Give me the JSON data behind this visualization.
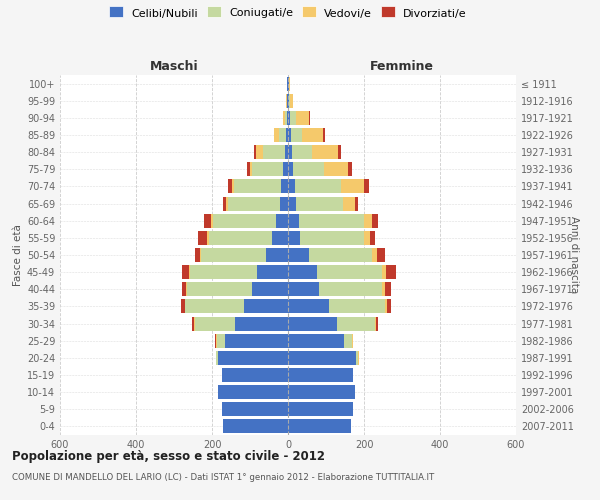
{
  "age_groups": [
    "0-4",
    "5-9",
    "10-14",
    "15-19",
    "20-24",
    "25-29",
    "30-34",
    "35-39",
    "40-44",
    "45-49",
    "50-54",
    "55-59",
    "60-64",
    "65-69",
    "70-74",
    "75-79",
    "80-84",
    "85-89",
    "90-94",
    "95-99",
    "100+"
  ],
  "birth_years": [
    "2007-2011",
    "2002-2006",
    "1997-2001",
    "1992-1996",
    "1987-1991",
    "1982-1986",
    "1977-1981",
    "1972-1976",
    "1967-1971",
    "1962-1966",
    "1957-1961",
    "1952-1956",
    "1947-1951",
    "1942-1946",
    "1937-1941",
    "1932-1936",
    "1927-1931",
    "1922-1926",
    "1917-1921",
    "1912-1916",
    "≤ 1911"
  ],
  "males": {
    "single": [
      170,
      175,
      185,
      175,
      185,
      165,
      140,
      115,
      95,
      82,
      58,
      42,
      32,
      22,
      18,
      12,
      8,
      5,
      3,
      2,
      2
    ],
    "married": [
      0,
      0,
      0,
      0,
      5,
      22,
      105,
      155,
      170,
      175,
      170,
      165,
      165,
      135,
      125,
      82,
      58,
      20,
      5,
      0,
      0
    ],
    "widowed": [
      0,
      0,
      0,
      0,
      0,
      2,
      2,
      2,
      3,
      3,
      3,
      5,
      5,
      5,
      5,
      5,
      18,
      12,
      5,
      2,
      1
    ],
    "divorced": [
      0,
      0,
      0,
      0,
      0,
      2,
      5,
      10,
      12,
      18,
      15,
      25,
      18,
      8,
      10,
      10,
      5,
      0,
      0,
      0,
      0
    ]
  },
  "females": {
    "single": [
      165,
      170,
      175,
      170,
      180,
      148,
      128,
      108,
      82,
      75,
      55,
      32,
      28,
      20,
      18,
      12,
      10,
      8,
      5,
      2,
      2
    ],
    "married": [
      0,
      0,
      0,
      0,
      5,
      20,
      100,
      148,
      165,
      172,
      165,
      168,
      172,
      125,
      122,
      82,
      52,
      30,
      15,
      2,
      0
    ],
    "widowed": [
      0,
      0,
      0,
      0,
      2,
      2,
      3,
      5,
      8,
      12,
      15,
      15,
      20,
      30,
      60,
      65,
      70,
      55,
      35,
      8,
      3
    ],
    "divorced": [
      0,
      0,
      0,
      0,
      0,
      2,
      5,
      10,
      15,
      25,
      20,
      15,
      18,
      10,
      12,
      10,
      8,
      5,
      2,
      0,
      0
    ]
  },
  "colors": {
    "single": "#4472c4",
    "married": "#c5d9a0",
    "widowed": "#f5c96b",
    "divorced": "#c0392b"
  },
  "legend_labels": [
    "Celibi/Nubili",
    "Coniugati/e",
    "Vedovi/e",
    "Divorziati/e"
  ],
  "xlim": 600,
  "xticks": [
    -600,
    -400,
    -200,
    0,
    200,
    400,
    600
  ],
  "title": "Popolazione per età, sesso e stato civile - 2012",
  "subtitle": "COMUNE DI MANDELLO DEL LARIO (LC) - Dati ISTAT 1° gennaio 2012 - Elaborazione TUTTITALIA.IT",
  "ylabel_left": "Fasce di età",
  "ylabel_right": "Anni di nascita",
  "xlabel_left": "Maschi",
  "xlabel_right": "Femmine",
  "bg_color": "#f5f5f5",
  "plot_bg_color": "#ffffff"
}
